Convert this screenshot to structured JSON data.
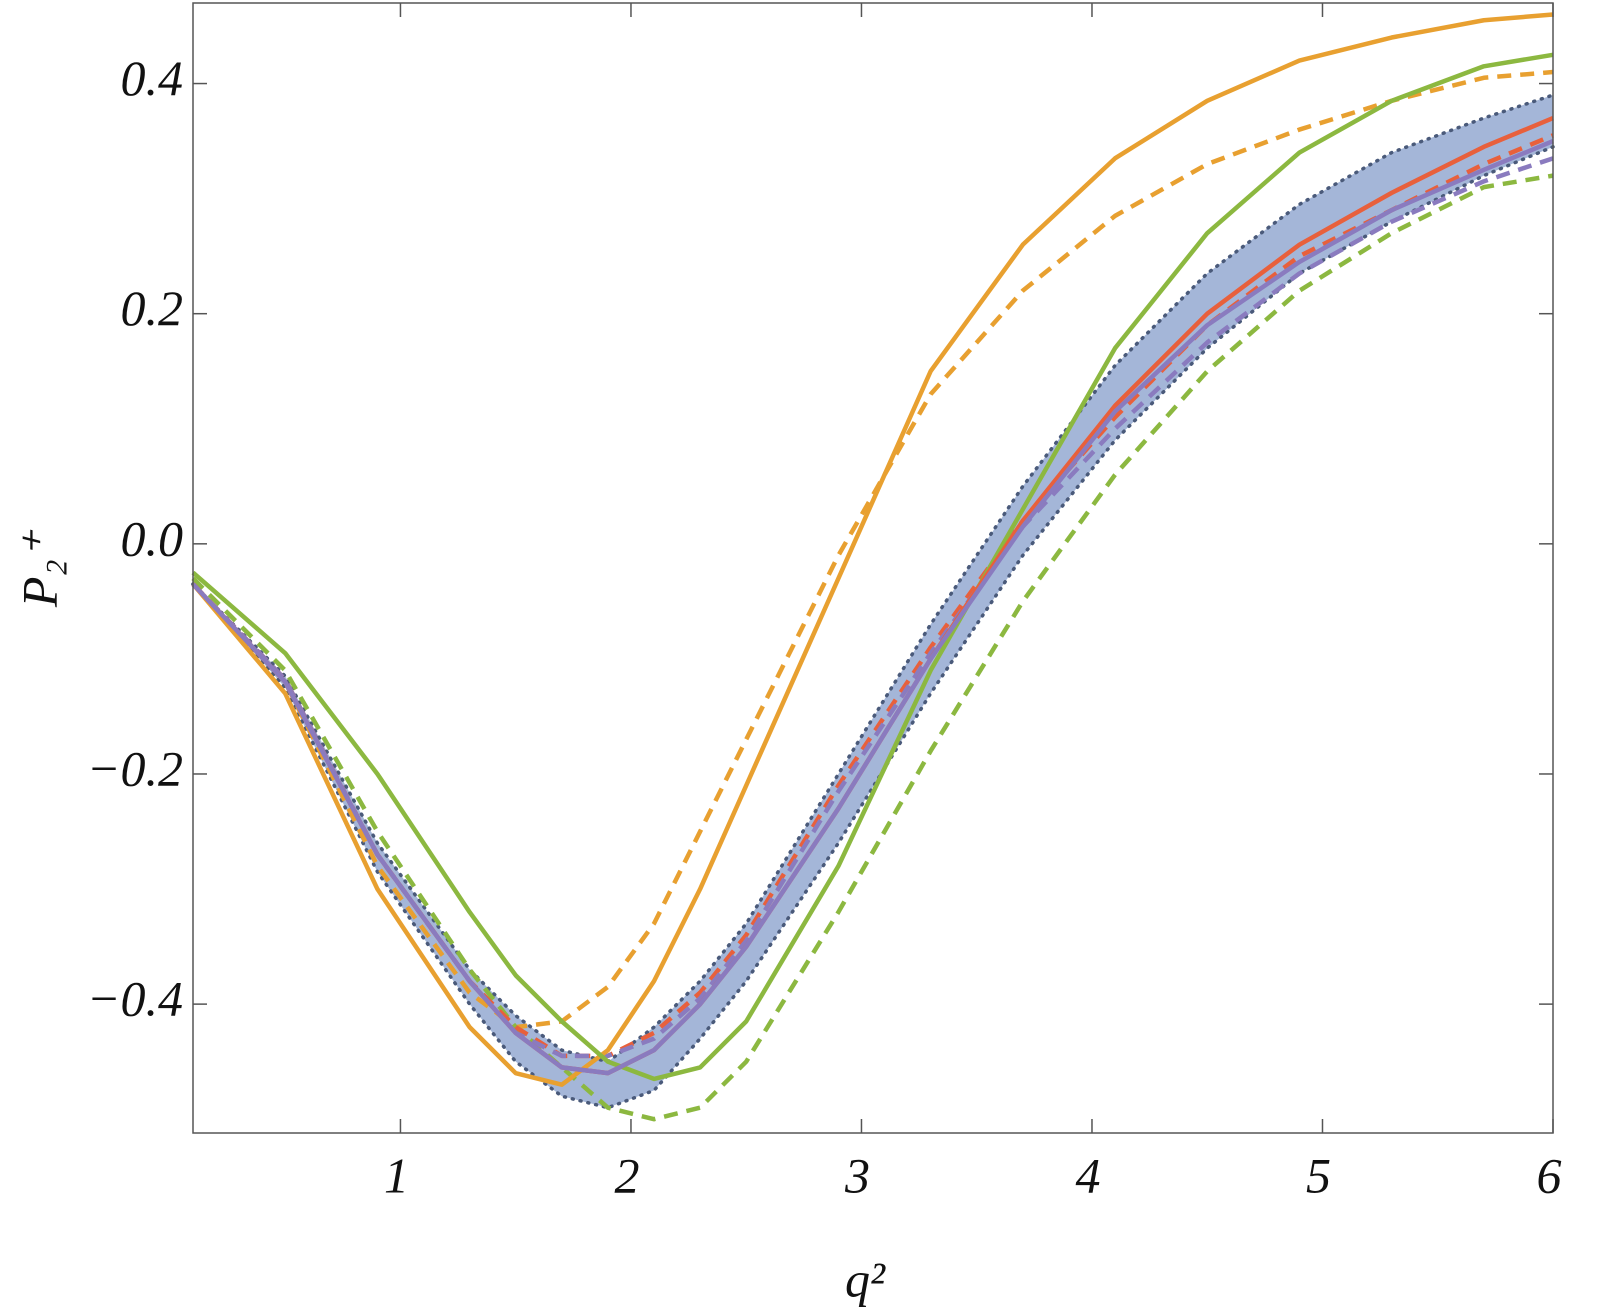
{
  "chart_data": {
    "type": "line",
    "xlabel": "q²",
    "ylabel": "P₂⁺",
    "x": [
      0.1,
      0.5,
      0.9,
      1.3,
      1.5,
      1.7,
      1.9,
      2.1,
      2.3,
      2.5,
      2.9,
      3.3,
      3.7,
      4.1,
      4.5,
      4.9,
      5.3,
      5.7,
      6.0
    ],
    "xlim": [
      0.1,
      6.0
    ],
    "xticks": [
      1,
      2,
      3,
      4,
      5,
      6
    ],
    "ylim": [
      -0.512,
      0.47
    ],
    "yticks": [
      {
        "value": -0.4,
        "label": "−0.4"
      },
      {
        "value": -0.2,
        "label": "−0.2"
      },
      {
        "value": 0,
        "label": "0.0"
      },
      0.2,
      0.4
    ],
    "band": {
      "color": "#a4b6d8",
      "edge_color": "#4a5a7a",
      "upper": [
        -0.035,
        -0.115,
        -0.26,
        -0.37,
        -0.41,
        -0.44,
        -0.45,
        -0.42,
        -0.38,
        -0.33,
        -0.2,
        -0.07,
        0.05,
        0.155,
        0.235,
        0.295,
        0.34,
        0.37,
        0.39
      ],
      "lower": [
        -0.035,
        -0.125,
        -0.285,
        -0.4,
        -0.45,
        -0.48,
        -0.49,
        -0.475,
        -0.43,
        -0.38,
        -0.26,
        -0.13,
        -0.01,
        0.09,
        0.17,
        0.235,
        0.28,
        0.32,
        0.345
      ]
    },
    "series": [
      {
        "color": "#e8a030",
        "dash": "dashed",
        "values": [
          -0.035,
          -0.12,
          -0.28,
          -0.39,
          -0.42,
          -0.415,
          -0.385,
          -0.33,
          -0.25,
          -0.17,
          -0.01,
          0.13,
          0.22,
          0.285,
          0.33,
          0.36,
          0.385,
          0.405,
          0.41
        ]
      },
      {
        "color": "#8cb840",
        "dash": "dashed",
        "values": [
          -0.03,
          -0.11,
          -0.25,
          -0.37,
          -0.42,
          -0.455,
          -0.49,
          -0.5,
          -0.49,
          -0.45,
          -0.32,
          -0.18,
          -0.05,
          0.06,
          0.15,
          0.22,
          0.27,
          0.31,
          0.32
        ]
      },
      {
        "color": "#e8603c",
        "dash": "dashed",
        "values": [
          -0.035,
          -0.118,
          -0.27,
          -0.38,
          -0.42,
          -0.445,
          -0.445,
          -0.425,
          -0.39,
          -0.34,
          -0.21,
          -0.09,
          0.02,
          0.11,
          0.19,
          0.25,
          0.29,
          0.33,
          0.355
        ]
      },
      {
        "color": "#8a7bbf",
        "dash": "dashed",
        "values": [
          -0.035,
          -0.118,
          -0.27,
          -0.38,
          -0.425,
          -0.445,
          -0.445,
          -0.43,
          -0.395,
          -0.345,
          -0.215,
          -0.095,
          0.015,
          0.1,
          0.175,
          0.235,
          0.28,
          0.315,
          0.335
        ]
      },
      {
        "color": "#e8a030",
        "dash": "solid",
        "values": [
          -0.035,
          -0.13,
          -0.3,
          -0.42,
          -0.46,
          -0.47,
          -0.44,
          -0.38,
          -0.3,
          -0.21,
          -0.03,
          0.15,
          0.26,
          0.335,
          0.385,
          0.42,
          0.44,
          0.455,
          0.46
        ]
      },
      {
        "color": "#8cb840",
        "dash": "solid",
        "values": [
          -0.025,
          -0.095,
          -0.2,
          -0.32,
          -0.375,
          -0.415,
          -0.45,
          -0.465,
          -0.455,
          -0.415,
          -0.28,
          -0.11,
          0.03,
          0.17,
          0.27,
          0.34,
          0.385,
          0.415,
          0.425
        ]
      },
      {
        "color": "#e8603c",
        "dash": "solid",
        "values": [
          -0.035,
          -0.12,
          -0.27,
          -0.38,
          -0.425,
          -0.455,
          -0.46,
          -0.44,
          -0.4,
          -0.35,
          -0.23,
          -0.1,
          0.02,
          0.12,
          0.2,
          0.26,
          0.305,
          0.345,
          0.37
        ]
      },
      {
        "color": "#8a7bbf",
        "dash": "solid",
        "values": [
          -0.035,
          -0.12,
          -0.27,
          -0.38,
          -0.425,
          -0.455,
          -0.46,
          -0.44,
          -0.4,
          -0.35,
          -0.23,
          -0.1,
          0.015,
          0.115,
          0.19,
          0.245,
          0.29,
          0.325,
          0.35
        ]
      }
    ]
  }
}
